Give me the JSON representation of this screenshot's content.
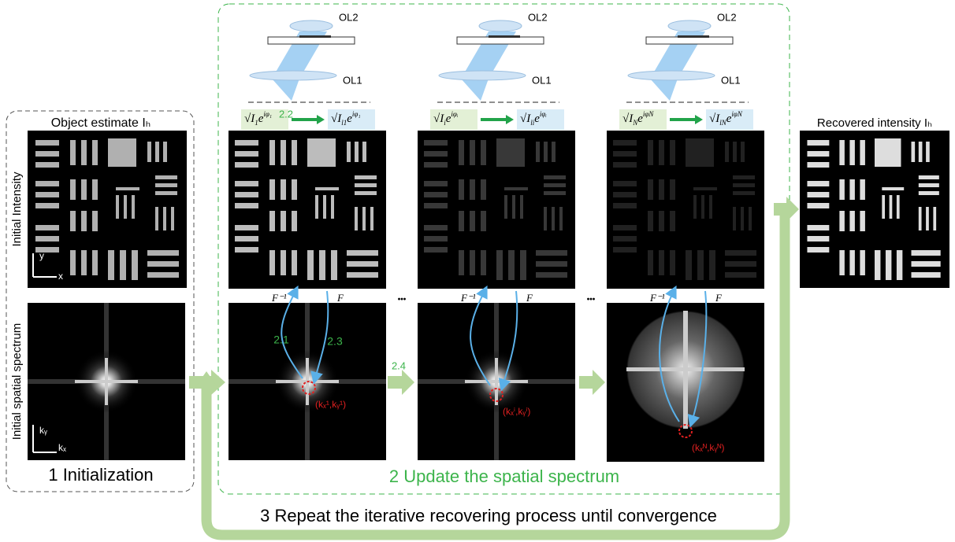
{
  "initialization": {
    "title": "Object estimate Iₕ",
    "intensity_label": "Initial Intensity",
    "spectrum_label": "Initial spatial spectrum",
    "axis_y": "y",
    "axis_x": "x",
    "axis_ky": "kᵧ",
    "axis_kx": "kₓ",
    "caption": "1 Initialization"
  },
  "update": {
    "caption": "2 Update the spatial spectrum",
    "ellipsis": "•••",
    "step_labels": {
      "inverse_step": "2.1",
      "replace_step": "2.2",
      "update_step": "2.3",
      "next_step": "2.4"
    },
    "columns": [
      {
        "ol2": "OL2",
        "ol1": "OL1",
        "formula_in": {
          "base": "√I",
          "sub": "1",
          "exp": "e",
          "sup": "iφ₁"
        },
        "formula_out": {
          "base": "√I",
          "sub": "l1",
          "exp": "e",
          "sup": "iφ₁"
        },
        "inverse_ft": "F⁻¹",
        "ft": "F",
        "coord": "(kₓ¹,kᵧ¹)"
      },
      {
        "ol2": "OL2",
        "ol1": "OL1",
        "formula_in": {
          "base": "√I",
          "sub": "i",
          "exp": "e",
          "sup": "iφᵢ"
        },
        "formula_out": {
          "base": "√I",
          "sub": "li",
          "exp": "e",
          "sup": "iφᵢ"
        },
        "inverse_ft": "F⁻¹",
        "ft": "F",
        "coord": "(kₓⁱ,kᵧⁱ)"
      },
      {
        "ol2": "OL2",
        "ol1": "OL1",
        "formula_in": {
          "base": "√I",
          "sub": "N",
          "exp": "e",
          "sup": "iφN"
        },
        "formula_out": {
          "base": "√I",
          "sub": "lN",
          "exp": "e",
          "sup": "iφN"
        },
        "inverse_ft": "F⁻¹",
        "ft": "F",
        "coord": "(kₓᴺ,kᵧᴺ)"
      }
    ]
  },
  "recovered": {
    "title": "Recovered intensity Iₕ"
  },
  "repeat": {
    "caption": "3 Repeat the iterative recovering process until convergence"
  }
}
